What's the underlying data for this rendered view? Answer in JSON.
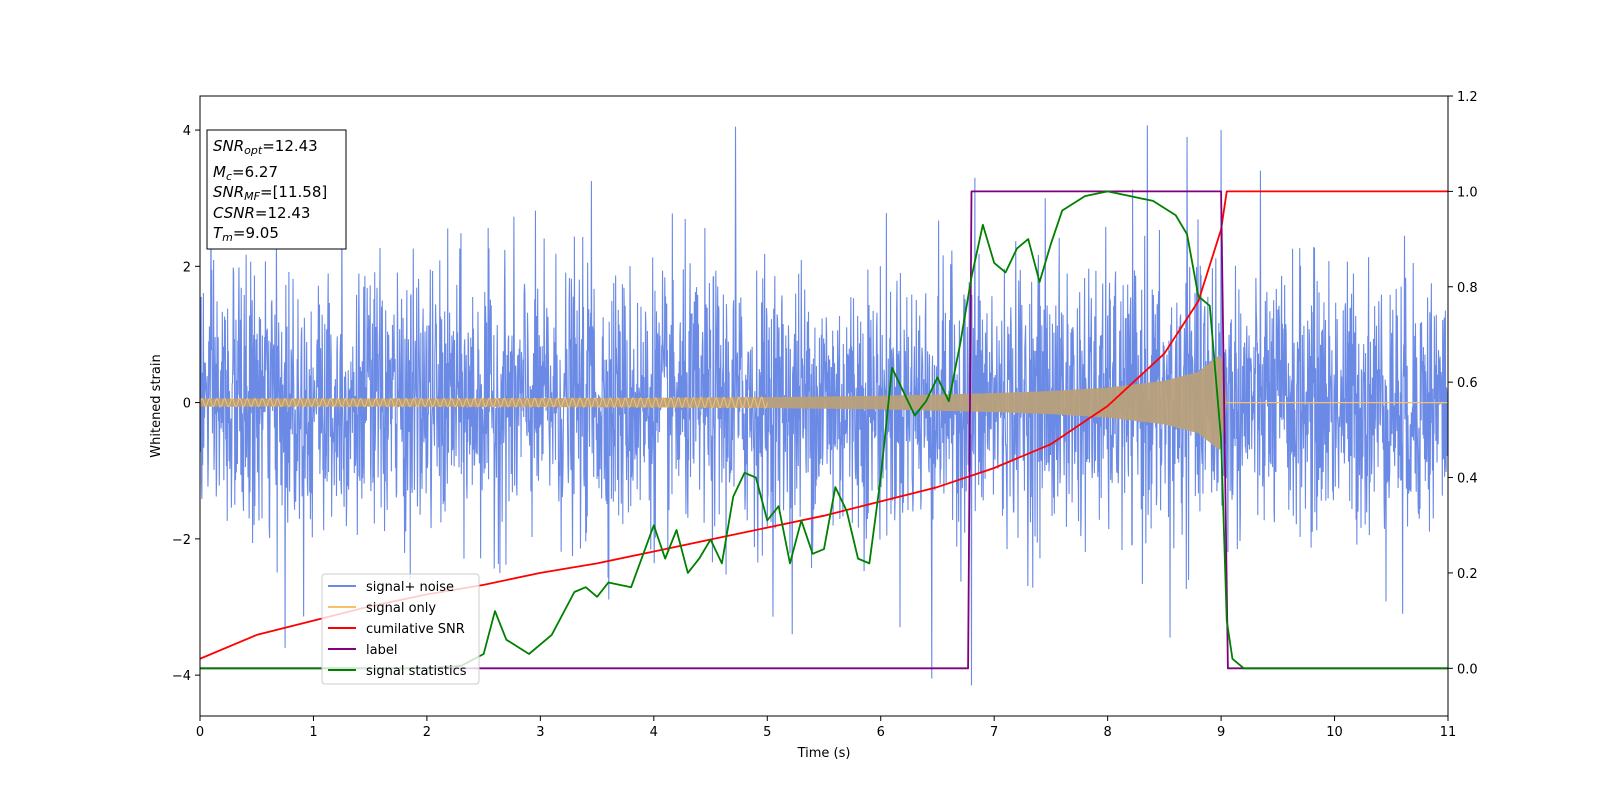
{
  "chart_data": {
    "type": "line",
    "xlabel": "Time (s)",
    "ylabel": "Whitened strain",
    "xlim": [
      0,
      11
    ],
    "ylim_left": [
      -4.6,
      4.5
    ],
    "ylim_right": [
      -0.1,
      1.2
    ],
    "x_ticks": [
      0,
      1,
      2,
      3,
      4,
      5,
      6,
      7,
      8,
      9,
      10,
      11
    ],
    "y_ticks_left": [
      -4,
      -2,
      0,
      2,
      4
    ],
    "y_ticks_right": [
      0.0,
      0.2,
      0.4,
      0.6,
      0.8,
      1.0,
      1.2
    ],
    "y_ticks_right_labels": [
      "0.0",
      "0.2",
      "0.4",
      "0.6",
      "0.8",
      "1.0",
      "1.2"
    ],
    "grid": false,
    "legend_position": "lower-left",
    "colors": {
      "signal_noise": "#6b8ae6",
      "signal_only": "#f5c26b",
      "overlap": "#b9a07b",
      "cumulative_snr": "#ff0000",
      "label": "#800080",
      "signal_statistics": "#008000"
    },
    "info_box": {
      "lines": [
        {
          "name": "SNR",
          "sub": "opt",
          "value": "=12.43"
        },
        {
          "name": "M",
          "sub": "c",
          "value": "=6.27"
        },
        {
          "name": "SNR",
          "sub": "MF",
          "value": "=[11.58]"
        },
        {
          "name": "CSNR",
          "sub": "",
          "value": "=12.43"
        },
        {
          "name": "T",
          "sub": "m",
          "value": "=9.05"
        }
      ]
    },
    "legend": [
      "signal+ noise",
      "signal only",
      "cumilative SNR",
      "label",
      "signal statistics"
    ],
    "series": [
      {
        "name": "signal+ noise",
        "axis": "left",
        "description_stats": {
          "std": 0.95,
          "min": -4.15,
          "max": 4.07
        },
        "spikes": [
          [
            0.75,
            -3.6
          ],
          [
            1.25,
            2.9
          ],
          [
            3.45,
            3.25
          ],
          [
            4.72,
            4.05
          ],
          [
            5.22,
            -3.4
          ],
          [
            6.45,
            -4.05
          ],
          [
            6.8,
            -4.15
          ],
          [
            6.83,
            3.3
          ],
          [
            7.45,
            3.0
          ],
          [
            8.35,
            4.07
          ],
          [
            8.7,
            3.9
          ],
          [
            9.0,
            4.0
          ],
          [
            8.55,
            -3.45
          ],
          [
            10.6,
            -3.1
          ]
        ]
      },
      {
        "name": "signal only",
        "axis": "left",
        "description": "chirp amplitude rising from ~0.05 to ~0.75 until merger at 9.05 s, zero afterwards",
        "envelope": [
          [
            0,
            0.06
          ],
          [
            2,
            0.06
          ],
          [
            4,
            0.07
          ],
          [
            5,
            0.08
          ],
          [
            6,
            0.1
          ],
          [
            7,
            0.14
          ],
          [
            7.5,
            0.17
          ],
          [
            8,
            0.22
          ],
          [
            8.5,
            0.32
          ],
          [
            8.8,
            0.45
          ],
          [
            9.0,
            0.72
          ],
          [
            9.05,
            0.0
          ],
          [
            11,
            0.0
          ]
        ]
      },
      {
        "name": "cumilative SNR",
        "axis": "right",
        "x": [
          0,
          0.5,
          1,
          1.5,
          2,
          2.5,
          3,
          3.5,
          4,
          4.5,
          5,
          5.5,
          6,
          6.5,
          7,
          7.5,
          8,
          8.5,
          8.8,
          9.0,
          9.05,
          11
        ],
        "values": [
          0.02,
          0.07,
          0.1,
          0.13,
          0.155,
          0.175,
          0.2,
          0.22,
          0.245,
          0.27,
          0.295,
          0.32,
          0.35,
          0.38,
          0.42,
          0.47,
          0.55,
          0.66,
          0.77,
          0.92,
          1.0,
          1.0
        ]
      },
      {
        "name": "label",
        "axis": "right",
        "x": [
          0,
          6.77,
          6.8,
          9.0,
          9.06,
          11
        ],
        "values": [
          0.0,
          0.0,
          1.0,
          1.0,
          0.0,
          0.0
        ]
      },
      {
        "name": "signal statistics",
        "axis": "right",
        "x": [
          0,
          0.5,
          1,
          1.5,
          2,
          2.3,
          2.5,
          2.6,
          2.7,
          2.9,
          3.0,
          3.1,
          3.3,
          3.4,
          3.5,
          3.6,
          3.8,
          4.0,
          4.1,
          4.2,
          4.3,
          4.4,
          4.5,
          4.6,
          4.7,
          4.8,
          4.9,
          5.0,
          5.1,
          5.2,
          5.3,
          5.4,
          5.5,
          5.6,
          5.7,
          5.8,
          5.9,
          6.0,
          6.1,
          6.2,
          6.3,
          6.4,
          6.5,
          6.6,
          6.7,
          6.8,
          6.9,
          7.0,
          7.1,
          7.2,
          7.3,
          7.4,
          7.5,
          7.6,
          7.8,
          8.0,
          8.2,
          8.4,
          8.6,
          8.7,
          8.8,
          8.9,
          9.0,
          9.05,
          9.1,
          9.2,
          11
        ],
        "values": [
          0.0,
          0.0,
          0.0,
          0.0,
          0.0,
          0.005,
          0.03,
          0.12,
          0.06,
          0.03,
          0.05,
          0.07,
          0.16,
          0.17,
          0.15,
          0.18,
          0.17,
          0.3,
          0.23,
          0.29,
          0.2,
          0.23,
          0.27,
          0.22,
          0.36,
          0.41,
          0.4,
          0.31,
          0.34,
          0.22,
          0.31,
          0.24,
          0.25,
          0.38,
          0.33,
          0.23,
          0.22,
          0.4,
          0.63,
          0.58,
          0.53,
          0.56,
          0.61,
          0.56,
          0.68,
          0.82,
          0.93,
          0.85,
          0.83,
          0.88,
          0.9,
          0.81,
          0.89,
          0.96,
          0.99,
          1.0,
          0.99,
          0.98,
          0.95,
          0.91,
          0.78,
          0.76,
          0.48,
          0.1,
          0.02,
          0.0,
          0.0
        ]
      }
    ]
  }
}
